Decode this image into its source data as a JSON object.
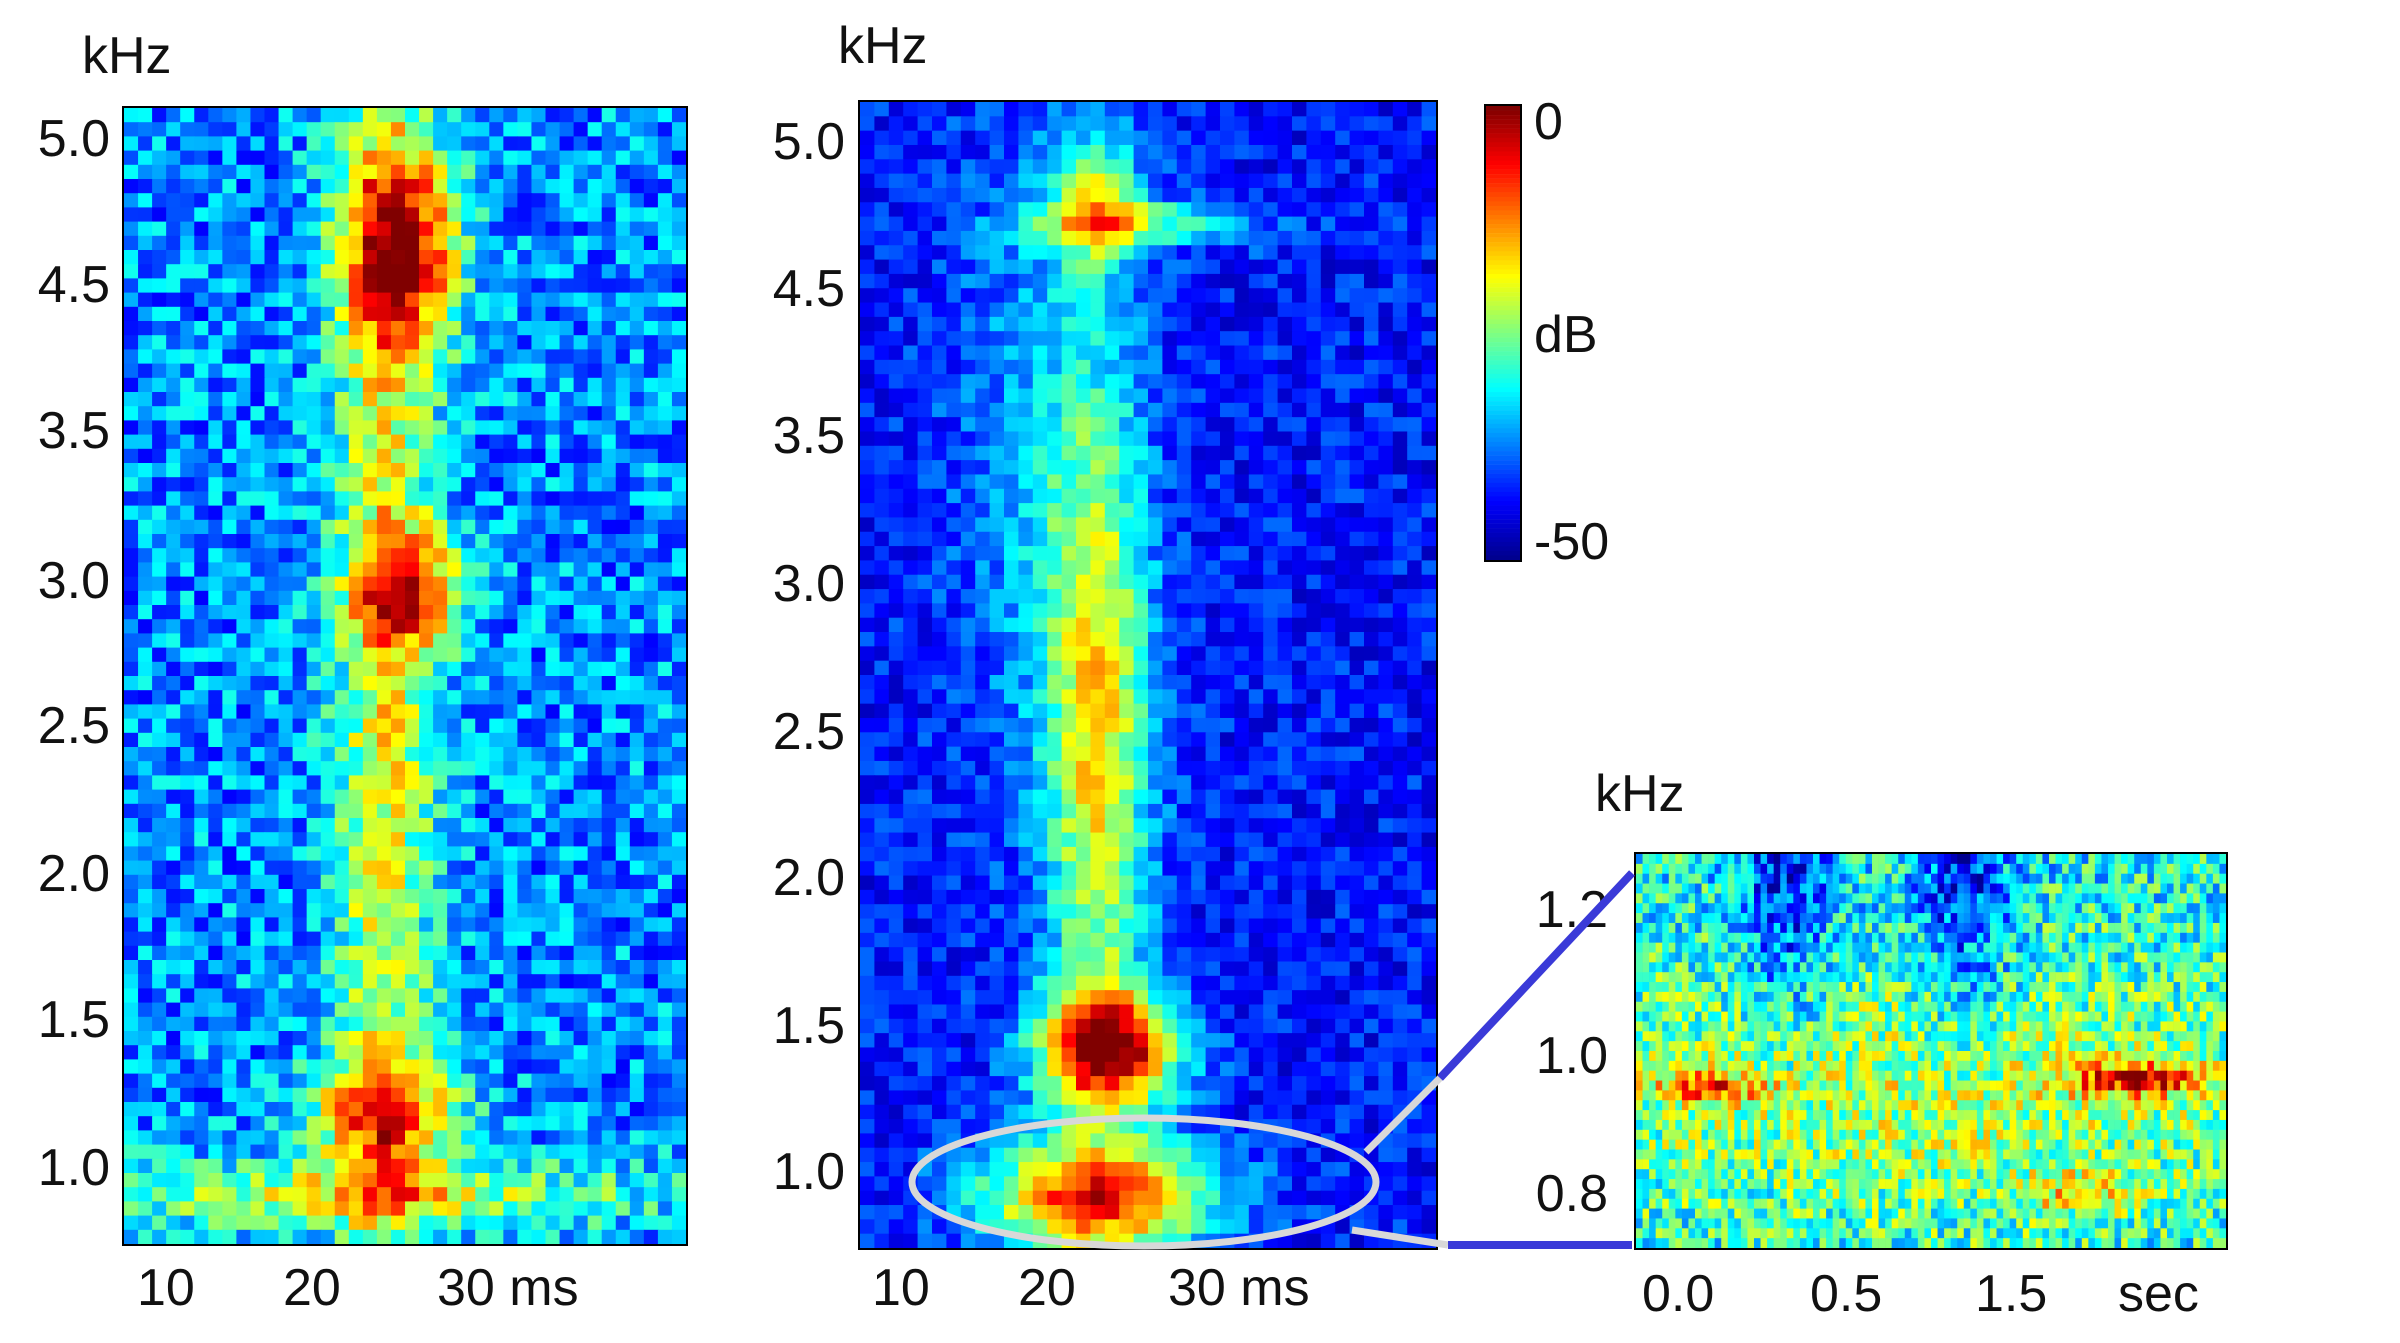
{
  "chart_data": [
    {
      "type": "heatmap",
      "y_unit": "kHz",
      "x_unit": "ms",
      "y_ticks": [
        "5.0",
        "4.5",
        "3.5",
        "3.0",
        "2.5",
        "2.0",
        "1.5",
        "1.0"
      ],
      "x_ticks": [
        "10",
        "20",
        "30 ms"
      ],
      "hotspots": [
        {
          "x": 24,
          "y": 4.7,
          "level": 0
        },
        {
          "x": 23,
          "y": 3.0,
          "level": -8
        },
        {
          "x": 23,
          "y": 1.2,
          "level": -15
        }
      ]
    },
    {
      "type": "heatmap",
      "y_unit": "kHz",
      "x_unit": "ms",
      "y_ticks": [
        "5.0",
        "4.5",
        "3.5",
        "3.0",
        "2.5",
        "2.0",
        "1.5",
        "1.0"
      ],
      "x_ticks": [
        "10",
        "20",
        "30 ms"
      ],
      "hotspots": [
        {
          "x": 25,
          "y": 1.45,
          "level": 0
        },
        {
          "x": 24,
          "y": 0.95,
          "level": -5
        },
        {
          "x": 23,
          "y": 2.0,
          "level": -18
        }
      ]
    },
    {
      "type": "heatmap",
      "y_unit": "kHz",
      "x_unit": "sec",
      "y_ticks": [
        "1.2",
        "1.0",
        "0.8"
      ],
      "x_ticks": [
        "0.0",
        "0.5",
        "1.5",
        "sec"
      ],
      "hotspots": [
        {
          "x": 0.2,
          "y": 0.95,
          "level": -12
        },
        {
          "x": 1.8,
          "y": 0.96,
          "level": -6
        }
      ]
    }
  ],
  "colorbar": {
    "max_label": "0",
    "unit_label": "dB",
    "min_label": "-50",
    "range": [
      -50,
      0
    ]
  },
  "colors": {
    "scale": [
      "#00008f",
      "#0000ff",
      "#0080ff",
      "#00ffff",
      "#80ff80",
      "#ffff00",
      "#ff8000",
      "#ff0000",
      "#800000"
    ],
    "zoom_line": "#3a3ad8",
    "ellipse": "#d8d8d8"
  }
}
